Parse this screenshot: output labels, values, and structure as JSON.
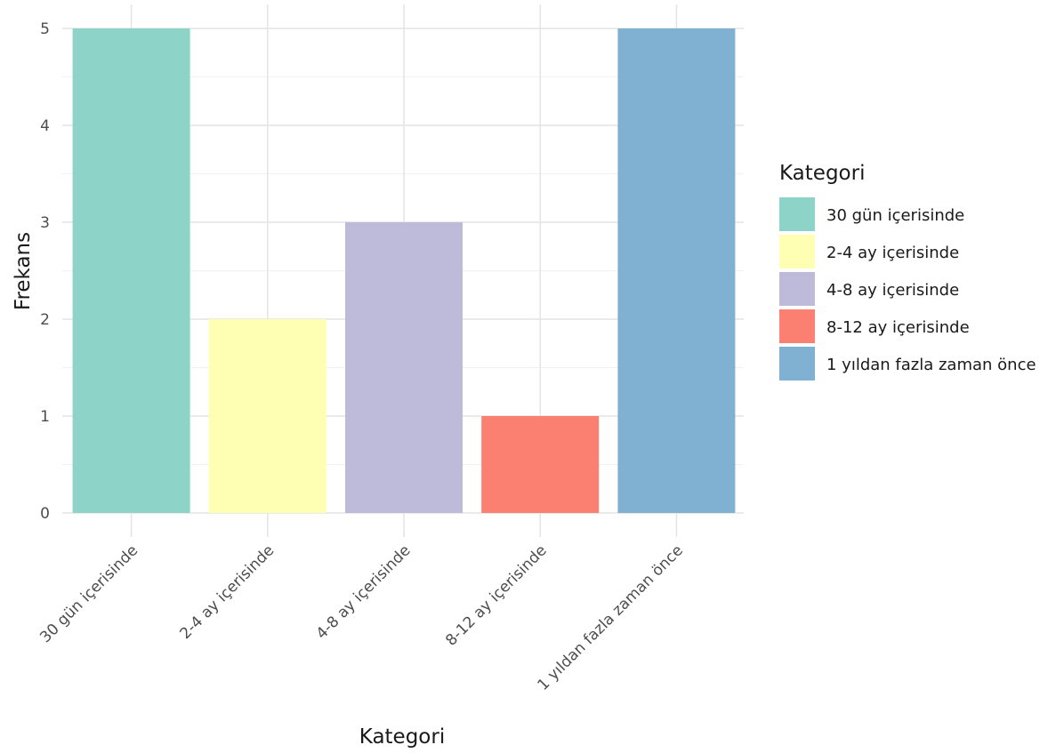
{
  "chart_data": {
    "type": "bar",
    "categories": [
      "30 gün içerisinde",
      "2-4 ay içerisinde",
      "4-8 ay içerisinde",
      "8-12 ay içerisinde",
      "1 yıldan fazla zaman önce"
    ],
    "values": [
      5,
      2,
      3,
      1,
      5
    ],
    "colors": [
      "#8dd3c7",
      "#ffffb3",
      "#bebada",
      "#fb8072",
      "#80b1d3"
    ],
    "title": "",
    "xlabel": "Kategori",
    "ylabel": "Frekans",
    "ylim": [
      0,
      5
    ],
    "yticks": [
      "0",
      "1",
      "2",
      "3",
      "4",
      "5"
    ],
    "grid": true,
    "legend": {
      "title": "Kategori",
      "position": "right",
      "entries": [
        "30 gün içerisinde",
        "2-4 ay içerisinde",
        "4-8 ay içerisinde",
        "8-12 ay içerisinde",
        "1 yıldan fazla zaman önce"
      ]
    }
  }
}
